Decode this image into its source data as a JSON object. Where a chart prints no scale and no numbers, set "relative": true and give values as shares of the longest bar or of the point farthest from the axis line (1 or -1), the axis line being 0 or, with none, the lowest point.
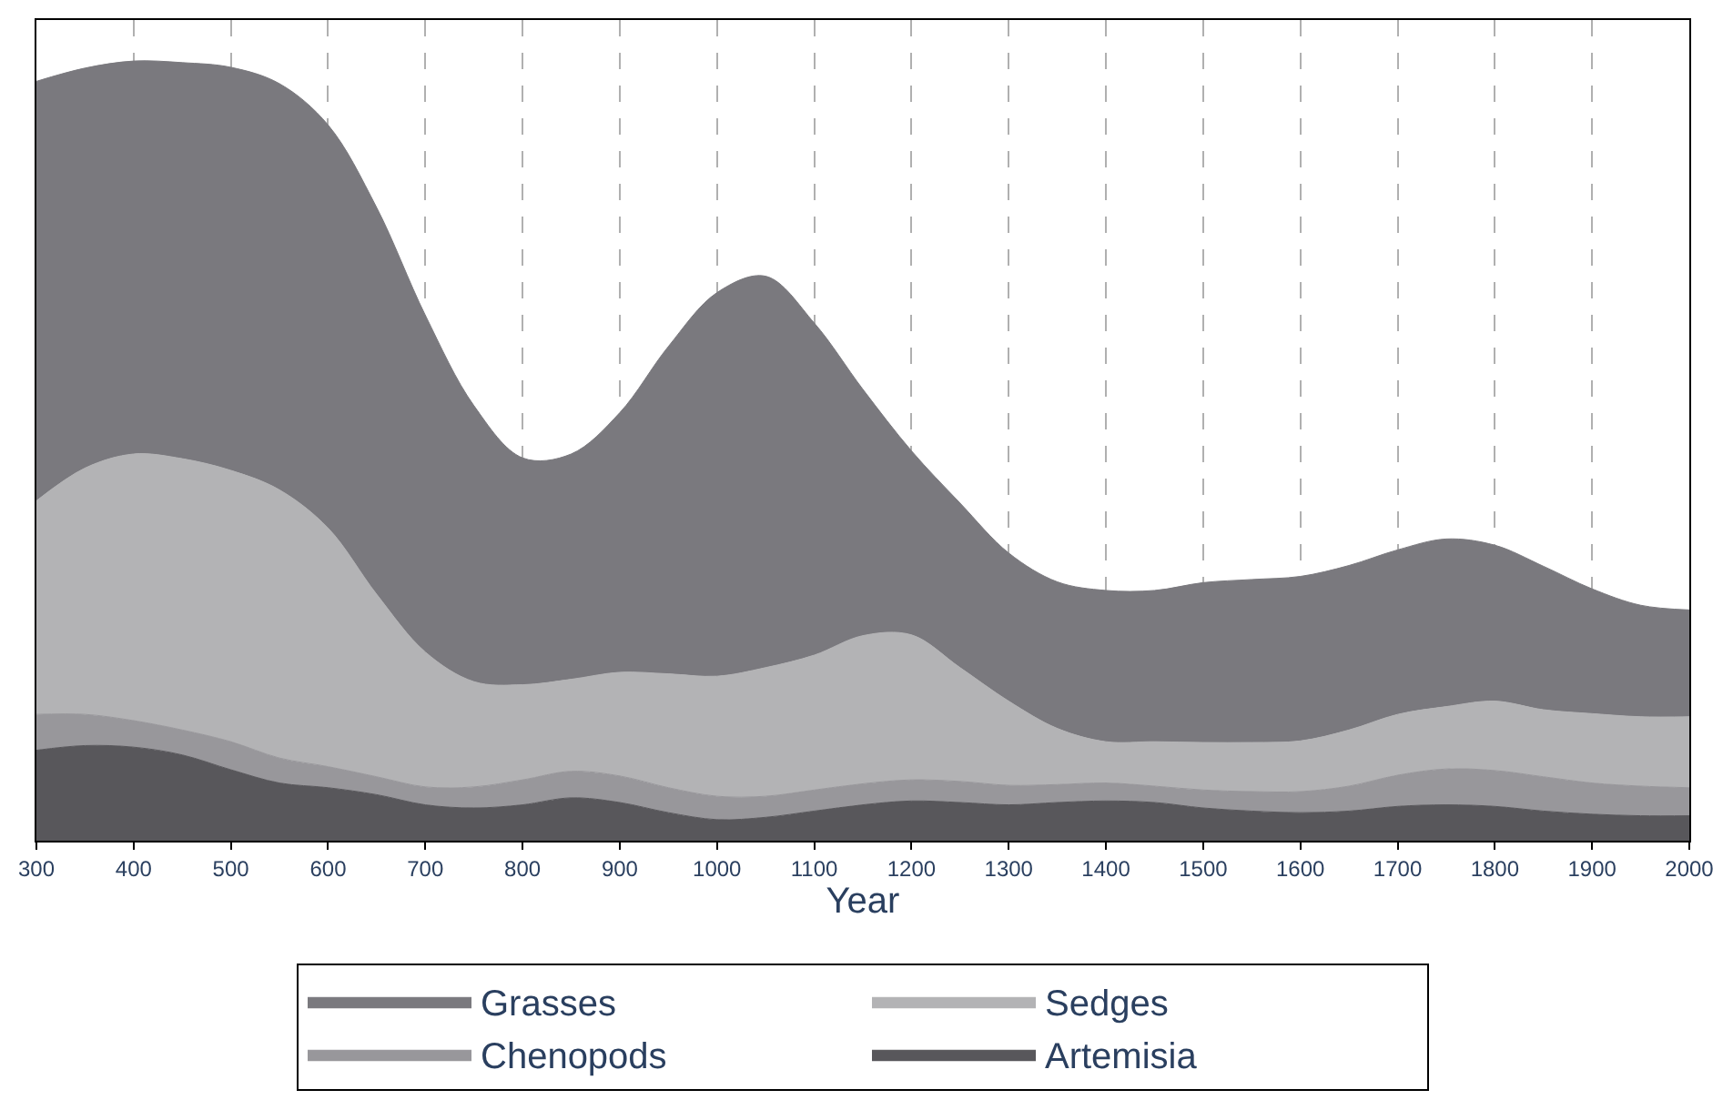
{
  "chart_data": {
    "type": "area",
    "stacked": true,
    "relative": true,
    "xlabel": "Year",
    "x": [
      300,
      350,
      400,
      450,
      500,
      550,
      600,
      650,
      700,
      750,
      800,
      850,
      900,
      950,
      1000,
      1050,
      1100,
      1150,
      1200,
      1250,
      1300,
      1350,
      1400,
      1450,
      1500,
      1550,
      1600,
      1650,
      1700,
      1750,
      1800,
      1850,
      1900,
      1950,
      2000
    ],
    "xlim": [
      300,
      2000
    ],
    "xticks": [
      300,
      400,
      500,
      600,
      700,
      800,
      900,
      1000,
      1100,
      1200,
      1300,
      1400,
      1500,
      1600,
      1700,
      1800,
      1900,
      2000
    ],
    "grid": "x",
    "legend": "bottom",
    "series": [
      {
        "name": "Artemisia",
        "color": "#58575b",
        "values": [
          0.116,
          0.122,
          0.12,
          0.11,
          0.091,
          0.074,
          0.068,
          0.059,
          0.046,
          0.042,
          0.046,
          0.055,
          0.049,
          0.036,
          0.027,
          0.03,
          0.038,
          0.046,
          0.051,
          0.049,
          0.046,
          0.049,
          0.051,
          0.049,
          0.042,
          0.038,
          0.036,
          0.038,
          0.044,
          0.046,
          0.044,
          0.038,
          0.034,
          0.032,
          0.032
        ]
      },
      {
        "name": "Chenopods",
        "color": "#98979b",
        "values": [
          0.046,
          0.04,
          0.034,
          0.032,
          0.036,
          0.032,
          0.027,
          0.023,
          0.023,
          0.027,
          0.032,
          0.034,
          0.034,
          0.032,
          0.03,
          0.027,
          0.027,
          0.027,
          0.027,
          0.027,
          0.025,
          0.023,
          0.023,
          0.021,
          0.023,
          0.025,
          0.027,
          0.032,
          0.04,
          0.046,
          0.046,
          0.044,
          0.04,
          0.038,
          0.036
        ]
      },
      {
        "name": "Sedges",
        "color": "#b3b3b5",
        "values": [
          0.274,
          0.316,
          0.342,
          0.348,
          0.348,
          0.344,
          0.306,
          0.234,
          0.173,
          0.135,
          0.122,
          0.118,
          0.133,
          0.146,
          0.154,
          0.165,
          0.173,
          0.19,
          0.186,
          0.146,
          0.108,
          0.072,
          0.053,
          0.057,
          0.061,
          0.063,
          0.065,
          0.072,
          0.078,
          0.08,
          0.089,
          0.086,
          0.089,
          0.089,
          0.091
        ]
      },
      {
        "name": "Grasses",
        "color": "#7a797e",
        "values": [
          0.538,
          0.513,
          0.504,
          0.508,
          0.517,
          0.521,
          0.517,
          0.496,
          0.432,
          0.354,
          0.291,
          0.289,
          0.333,
          0.42,
          0.492,
          0.502,
          0.426,
          0.316,
          0.236,
          0.211,
          0.19,
          0.188,
          0.194,
          0.194,
          0.205,
          0.209,
          0.211,
          0.211,
          0.211,
          0.215,
          0.2,
          0.184,
          0.16,
          0.143,
          0.137
        ]
      }
    ]
  }
}
